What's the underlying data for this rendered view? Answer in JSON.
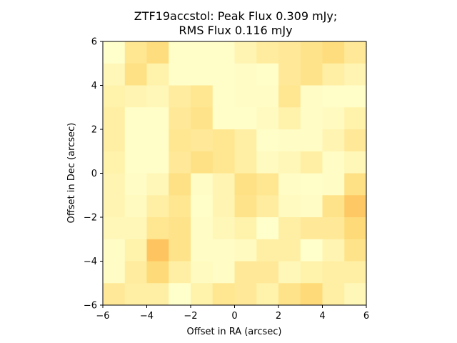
{
  "chart_data": {
    "type": "heatmap",
    "title_line1": "ZTF19accstol: Peak Flux 0.309 mJy;",
    "title_line2": "RMS Flux 0.116 mJy",
    "xlabel": "Offset in RA (arcsec)",
    "ylabel": "Offset in Dec (arcsec)",
    "xlim": [
      -6,
      6
    ],
    "ylim": [
      -6,
      6
    ],
    "xticks": [
      -6,
      -4,
      -2,
      0,
      2,
      4,
      6
    ],
    "yticks": [
      -6,
      -4,
      -2,
      0,
      2,
      4,
      6
    ],
    "xtick_labels": [
      "−6",
      "−4",
      "−2",
      "0",
      "2",
      "4",
      "6"
    ],
    "ytick_labels": [
      "−6",
      "−4",
      "−2",
      "0",
      "2",
      "4",
      "6"
    ],
    "colormap": [
      "#ffffcc",
      "#ffeda0",
      "#fed976",
      "#feb24c"
    ],
    "grid": false,
    "rows_top_to_bottom": [
      [
        0.0,
        0.45,
        0.6,
        0.02,
        0.02,
        0.02,
        0.2,
        0.35,
        0.4,
        0.5,
        0.6,
        0.4
      ],
      [
        0.15,
        0.55,
        0.25,
        0.02,
        0.02,
        0.02,
        0.05,
        0.02,
        0.4,
        0.5,
        0.3,
        0.2
      ],
      [
        0.25,
        0.2,
        0.15,
        0.35,
        0.45,
        0.02,
        0.05,
        0.05,
        0.45,
        0.05,
        0.02,
        0.02
      ],
      [
        0.3,
        0.02,
        0.02,
        0.4,
        0.5,
        0.02,
        0.02,
        0.1,
        0.25,
        0.05,
        0.1,
        0.25
      ],
      [
        0.3,
        0.02,
        0.02,
        0.45,
        0.4,
        0.45,
        0.3,
        0.02,
        0.05,
        0.05,
        0.2,
        0.4
      ],
      [
        0.25,
        0.02,
        0.02,
        0.4,
        0.55,
        0.45,
        0.3,
        0.1,
        0.15,
        0.3,
        0.05,
        0.15
      ],
      [
        0.2,
        0.05,
        0.15,
        0.55,
        0.05,
        0.2,
        0.55,
        0.45,
        0.05,
        0.02,
        0.05,
        0.55
      ],
      [
        0.2,
        0.1,
        0.3,
        0.45,
        0.02,
        0.2,
        0.5,
        0.35,
        0.1,
        0.05,
        0.5,
        0.8
      ],
      [
        0.15,
        0.15,
        0.45,
        0.5,
        0.05,
        0.15,
        0.25,
        0.0,
        0.3,
        0.4,
        0.4,
        0.65
      ],
      [
        0.05,
        0.25,
        0.85,
        0.5,
        0.05,
        0.05,
        0.1,
        0.3,
        0.3,
        0.0,
        0.2,
        0.5
      ],
      [
        0.05,
        0.35,
        0.65,
        0.3,
        0.1,
        0.05,
        0.4,
        0.4,
        0.15,
        0.25,
        0.3,
        0.3
      ],
      [
        0.4,
        0.3,
        0.3,
        0.0,
        0.25,
        0.45,
        0.4,
        0.25,
        0.5,
        0.65,
        0.3,
        0.15
      ]
    ]
  }
}
